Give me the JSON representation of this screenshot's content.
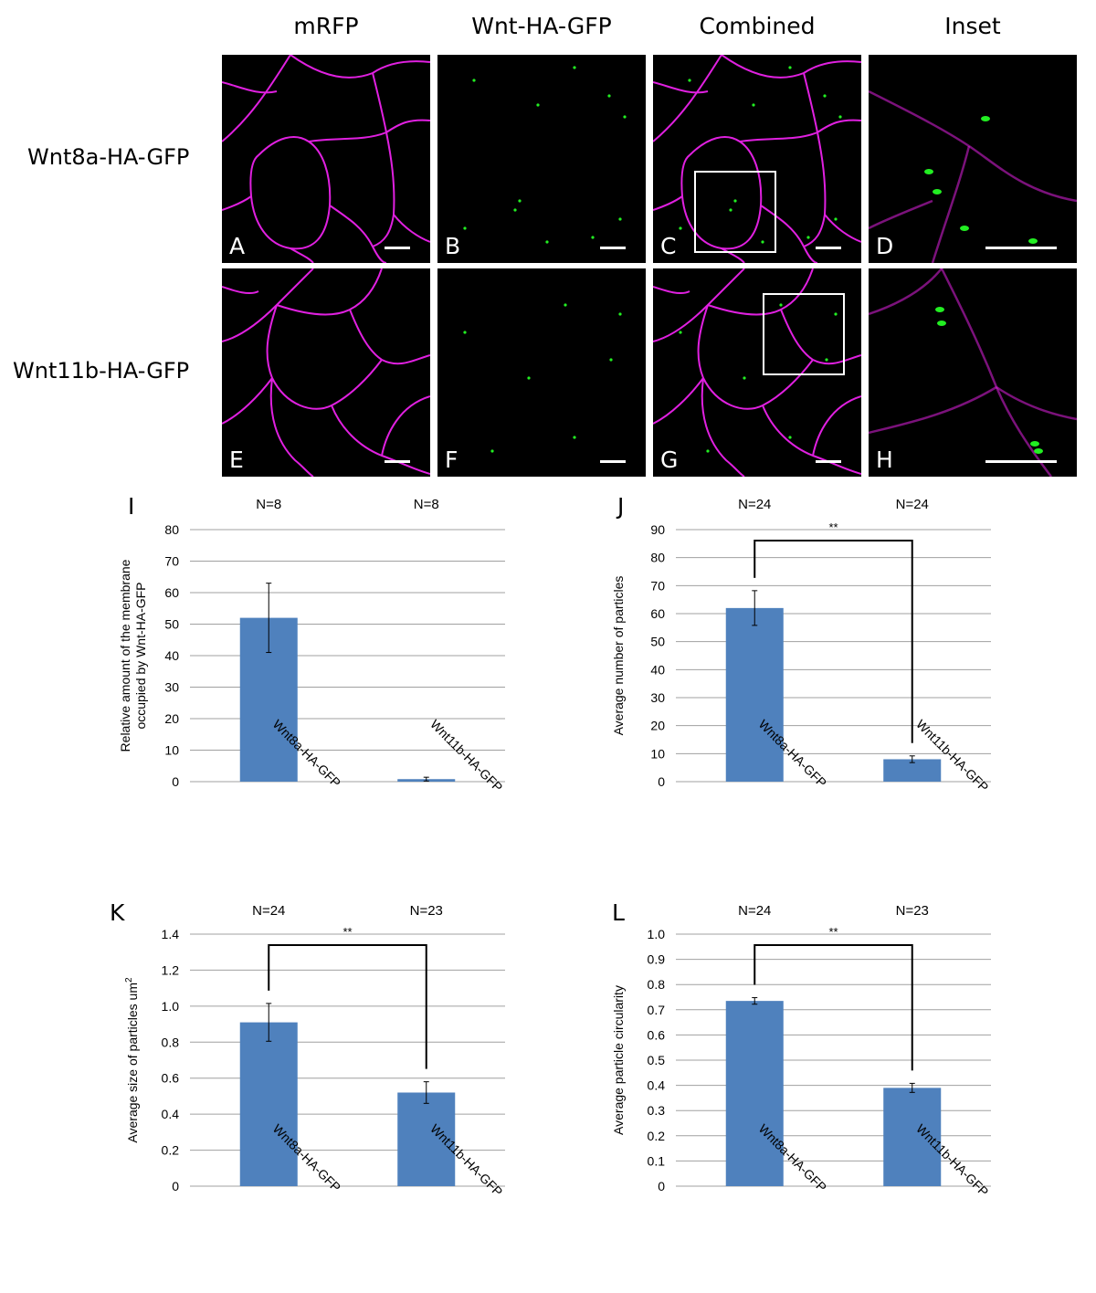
{
  "micrographs": {
    "column_headers": [
      "mRFP",
      "Wnt-HA-GFP",
      "Combined",
      "Inset"
    ],
    "row_labels": [
      "Wnt8a-HA-GFP",
      "Wnt11b-HA-GFP"
    ],
    "panel_letters": [
      "A",
      "B",
      "C",
      "D",
      "E",
      "F",
      "G",
      "H"
    ],
    "colors": {
      "membrane": "#e020e0",
      "particles": "#22ee22",
      "background": "#000000",
      "scale_bar": "#ffffff"
    }
  },
  "chart_data": [
    {
      "panel": "I",
      "type": "bar",
      "categories": [
        "Wnt8a-HA-GFP",
        "Wnt11b-HA-GFP"
      ],
      "values": [
        52,
        0.8
      ],
      "errors": [
        11,
        0.6
      ],
      "n_labels": [
        "N=8",
        "N=8"
      ],
      "ylabel": "Relative amount of the membrane occupied by Wnt-HA-GFP",
      "ylabel_lines": [
        "Relative amount of the membrane",
        "occupied by Wnt-HA-GFP"
      ],
      "ylim": [
        0,
        80
      ],
      "yticks": [
        0,
        10,
        20,
        30,
        40,
        50,
        60,
        70,
        80
      ],
      "ytick_labels": [
        "0",
        "10",
        "20",
        "30",
        "40",
        "50",
        "60",
        "70",
        "80"
      ],
      "significance": "",
      "grid": true,
      "bar_color": "#4f81bd"
    },
    {
      "panel": "J",
      "type": "bar",
      "categories": [
        "Wnt8a-HA-GFP",
        "Wnt11b-HA-GFP"
      ],
      "values": [
        62,
        8
      ],
      "errors": [
        6.2,
        1.2
      ],
      "n_labels": [
        "N=24",
        "N=24"
      ],
      "ylabel": "Average number of particles",
      "ylabel_lines": [
        "Average number of particles"
      ],
      "ylim": [
        0,
        90
      ],
      "yticks": [
        0,
        10,
        20,
        30,
        40,
        50,
        60,
        70,
        80,
        90
      ],
      "ytick_labels": [
        "0",
        "10",
        "20",
        "30",
        "40",
        "50",
        "60",
        "70",
        "80",
        "90"
      ],
      "significance": "**",
      "grid": true,
      "bar_color": "#4f81bd"
    },
    {
      "panel": "K",
      "type": "bar",
      "categories": [
        "Wnt8a-HA-GFP",
        "Wnt11b-HA-GFP"
      ],
      "values": [
        0.91,
        0.52
      ],
      "errors": [
        0.105,
        0.06
      ],
      "n_labels": [
        "N=24",
        "N=23"
      ],
      "ylabel": "Average size of particles um²",
      "ylabel_lines": [
        "Average size of particles um²"
      ],
      "ylim": [
        0,
        1.4
      ],
      "yticks": [
        0,
        0.2,
        0.4,
        0.6,
        0.8,
        1.0,
        1.2,
        1.4
      ],
      "ytick_labels": [
        "0",
        "0.2",
        "0.4",
        "0.6",
        "0.8",
        "1.0",
        "1.2",
        "1.4"
      ],
      "significance": "**",
      "grid": true,
      "bar_color": "#4f81bd"
    },
    {
      "panel": "L",
      "type": "bar",
      "categories": [
        "Wnt8a-HA-GFP",
        "Wnt11b-HA-GFP"
      ],
      "values": [
        0.735,
        0.39
      ],
      "errors": [
        0.013,
        0.018
      ],
      "n_labels": [
        "N=24",
        "N=23"
      ],
      "ylabel": "Average particle circularity",
      "ylabel_lines": [
        "Average particle circularity"
      ],
      "ylim": [
        0,
        1.0
      ],
      "yticks": [
        0,
        0.1,
        0.2,
        0.3,
        0.4,
        0.5,
        0.6,
        0.7,
        0.8,
        0.9,
        1.0
      ],
      "ytick_labels": [
        "0",
        "0.1",
        "0.2",
        "0.3",
        "0.4",
        "0.5",
        "0.6",
        "0.7",
        "0.8",
        "0.9",
        "1.0"
      ],
      "significance": "**",
      "grid": true,
      "bar_color": "#4f81bd"
    }
  ]
}
